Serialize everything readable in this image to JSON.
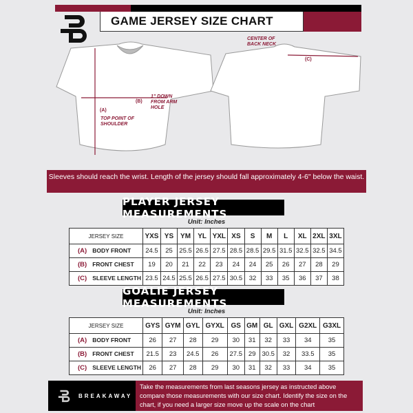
{
  "colors": {
    "accent": "#8b1a36",
    "dark": "#000000",
    "background": "#e9e9eb"
  },
  "header": {
    "title": "GAME JERSEY SIZE CHART",
    "logo": "B"
  },
  "diagram": {
    "front_labels": {
      "a_key": "(A)",
      "a_text": "TOP POINT OF SHOULDER",
      "b_key": "(B)",
      "b_text": "1\" DOWN FROM ARM HOLE"
    },
    "back_labels": {
      "c_key": "(C)",
      "c_text": "CENTER OF BACK NECK"
    }
  },
  "banner": {
    "text": "Sleeves should reach the wrist. Length of the jersey should fall approximately 4-6\" below the waist."
  },
  "player": {
    "title": "PLAYER JERSEY MEASUREMENTS",
    "unit": "Unit: Inches",
    "size_label": "JERSEY SIZE",
    "sizes": [
      "YXS",
      "YS",
      "YM",
      "YL",
      "YXL",
      "XS",
      "S",
      "M",
      "L",
      "XL",
      "2XL",
      "3XL"
    ],
    "rows": [
      {
        "key": "(A)",
        "label": "BODY FRONT",
        "values": [
          "24.5",
          "25",
          "25.5",
          "26.5",
          "27.5",
          "28.5",
          "28.5",
          "29.5",
          "31.5",
          "32.5",
          "32.5",
          "34.5"
        ]
      },
      {
        "key": "(B)",
        "label": "FRONT CHEST",
        "values": [
          "19",
          "20",
          "21",
          "22",
          "23",
          "24",
          "24",
          "25",
          "26",
          "27",
          "28",
          "29"
        ]
      },
      {
        "key": "(C)",
        "label": "SLEEVE LENGTH",
        "values": [
          "23.5",
          "24.5",
          "25.5",
          "26.5",
          "27.5",
          "30.5",
          "32",
          "33",
          "35",
          "36",
          "37",
          "38"
        ]
      }
    ]
  },
  "goalie": {
    "title": "GOALIE JERSEY MEASUREMENTS",
    "unit": "Unit: Inches",
    "size_label": "JERSEY SIZE",
    "sizes": [
      "GYS",
      "GYM",
      "GYL",
      "GYXL",
      "GS",
      "GM",
      "GL",
      "GXL",
      "G2XL",
      "G3XL"
    ],
    "rows": [
      {
        "key": "(A)",
        "label": "BODY FRONT",
        "values": [
          "26",
          "27",
          "28",
          "29",
          "30",
          "31",
          "32",
          "33",
          "34",
          "35"
        ]
      },
      {
        "key": "(B)",
        "label": "FRONT CHEST",
        "values": [
          "21.5",
          "23",
          "24.5",
          "26",
          "27.5",
          "29",
          "30.5",
          "32",
          "33.5",
          "35"
        ]
      },
      {
        "key": "(C)",
        "label": "SLEEVE LENGTH",
        "values": [
          "26",
          "27",
          "28",
          "29",
          "30",
          "31",
          "32",
          "33",
          "34",
          "35"
        ]
      }
    ]
  },
  "footer": {
    "brand": "BREAKAWAY",
    "text": "Take the measurements from last seasons jersey as instructed above compare those measurements  with our size chart. Identify the size on the chart, if you need a larger size move up the scale on the chart"
  }
}
